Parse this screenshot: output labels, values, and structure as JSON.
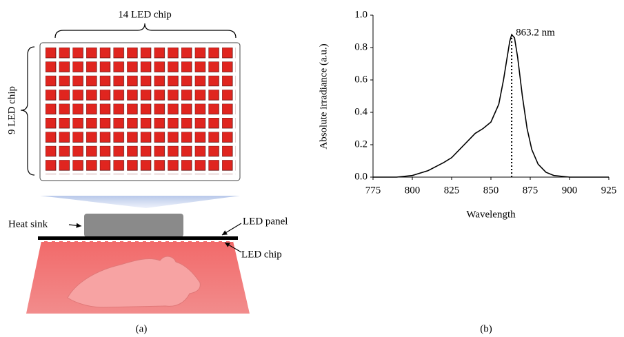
{
  "chart_data": {
    "type": "line",
    "x": [
      775,
      790,
      800,
      810,
      820,
      825,
      830,
      835,
      840,
      845,
      850,
      855,
      858,
      860,
      862,
      863.2,
      865,
      867,
      870,
      873,
      876,
      880,
      885,
      890,
      900,
      910,
      925
    ],
    "series": [
      {
        "color": "#000000",
        "values": [
          0,
          0,
          0.01,
          0.04,
          0.09,
          0.12,
          0.17,
          0.22,
          0.27,
          0.3,
          0.34,
          0.45,
          0.6,
          0.72,
          0.84,
          0.88,
          0.86,
          0.74,
          0.5,
          0.3,
          0.17,
          0.08,
          0.03,
          0.01,
          0,
          0,
          0
        ]
      }
    ],
    "xlim": [
      775,
      925
    ],
    "xticks": [
      775,
      800,
      825,
      850,
      875,
      900,
      925
    ],
    "ylim": [
      0,
      1
    ],
    "yticks": [
      {
        "value": 0,
        "label": "0.0"
      },
      {
        "value": 0.2,
        "label": "0.2"
      },
      {
        "value": 0.4,
        "label": "0.4"
      },
      {
        "value": 0.6,
        "label": "0.6"
      },
      {
        "value": 0.8,
        "label": "0.8"
      },
      {
        "value": 1,
        "label": "1.0"
      }
    ],
    "xlabel": "Wavelength",
    "ylabel": "Absolute irradiance (a.u.)",
    "panel_label": "(b)",
    "annotation": {
      "x": 863.2,
      "y": 0.88,
      "label": "863.2 nm"
    }
  },
  "diagram": {
    "panel_label": "(a)",
    "labels": {
      "columns": "14 LED chip",
      "rows": "9 LED chip",
      "heat_sink": "Heat sink",
      "panel": "LED panel",
      "chip": "LED chip"
    }
  }
}
